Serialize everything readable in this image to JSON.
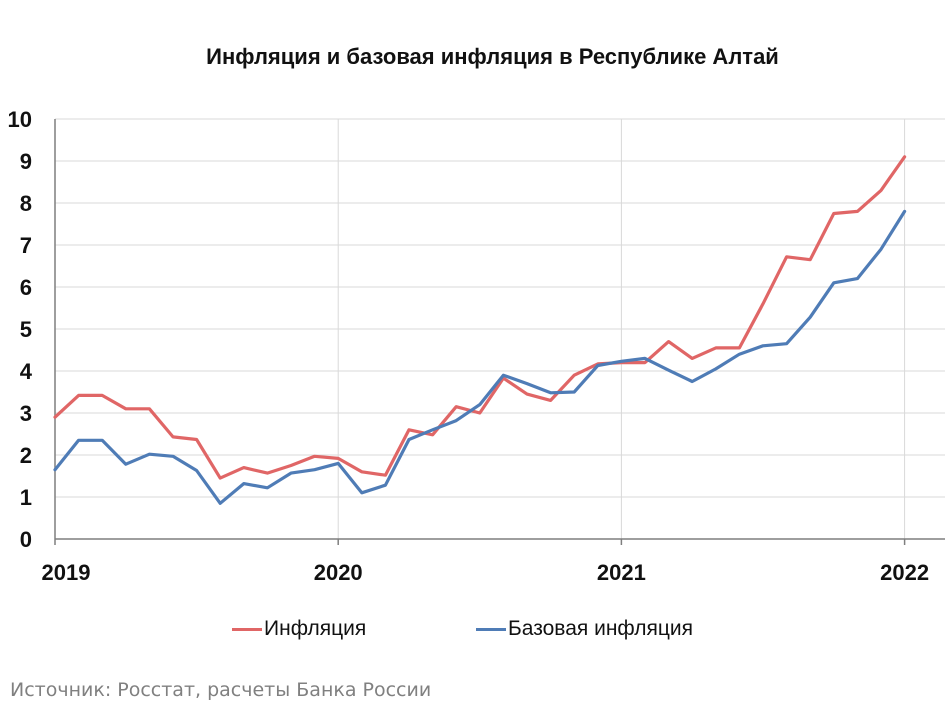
{
  "chart_data": {
    "type": "line",
    "title": "Инфляция и базовая инфляция в Республике Алтай",
    "xlabel": "",
    "ylabel": "",
    "x_ticks": [
      "2019",
      "2020",
      "2021",
      "2022"
    ],
    "y_ticks": [
      "0",
      "1",
      "2",
      "3",
      "4",
      "5",
      "6",
      "7",
      "8",
      "9",
      "10"
    ],
    "ylim": [
      0,
      10
    ],
    "grid": true,
    "legend_position": "bottom",
    "x": [
      "2019-01",
      "2019-02",
      "2019-03",
      "2019-04",
      "2019-05",
      "2019-06",
      "2019-07",
      "2019-08",
      "2019-09",
      "2019-10",
      "2019-11",
      "2019-12",
      "2020-01",
      "2020-02",
      "2020-03",
      "2020-04",
      "2020-05",
      "2020-06",
      "2020-07",
      "2020-08",
      "2020-09",
      "2020-10",
      "2020-11",
      "2020-12",
      "2021-01",
      "2021-02",
      "2021-03",
      "2021-04",
      "2021-05",
      "2021-06",
      "2021-07",
      "2021-08",
      "2021-09",
      "2021-10",
      "2021-11",
      "2021-12",
      "2022-01"
    ],
    "series": [
      {
        "name": "Инфляция",
        "color": "#e06666",
        "values": [
          2.9,
          3.42,
          3.42,
          3.1,
          3.1,
          2.43,
          2.37,
          1.45,
          1.7,
          1.57,
          1.75,
          1.97,
          1.92,
          1.6,
          1.52,
          2.6,
          2.48,
          3.15,
          3.0,
          3.83,
          3.45,
          3.3,
          3.9,
          4.17,
          4.2,
          4.2,
          4.7,
          4.3,
          4.55,
          4.55,
          5.6,
          6.72,
          6.65,
          7.75,
          7.8,
          8.3,
          9.1
        ]
      },
      {
        "name": "Базовая инфляция",
        "color": "#4f7cb6",
        "values": [
          1.65,
          2.35,
          2.35,
          1.78,
          2.02,
          1.97,
          1.63,
          0.85,
          1.32,
          1.22,
          1.57,
          1.65,
          1.8,
          1.1,
          1.28,
          2.37,
          2.6,
          2.82,
          3.2,
          3.9,
          3.7,
          3.48,
          3.5,
          4.13,
          4.23,
          4.3,
          4.02,
          3.75,
          4.05,
          4.4,
          4.6,
          4.65,
          5.28,
          6.1,
          6.2,
          6.9,
          7.8
        ]
      }
    ]
  },
  "source": "Источник: Росстат, расчеты Банка России"
}
